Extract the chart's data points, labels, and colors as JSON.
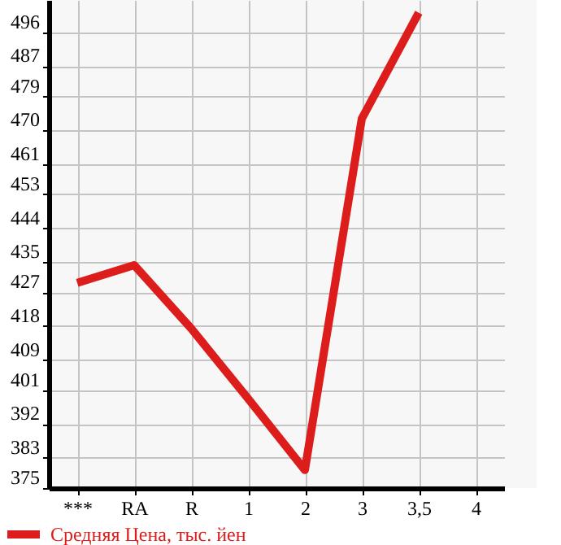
{
  "chart_data": {
    "type": "line",
    "categories": [
      "***",
      "RA",
      "R",
      "1",
      "2",
      "3",
      "3,5",
      "4"
    ],
    "series": [
      {
        "name": "Средняя Цена, тыс. йен",
        "color": "#dd1c1c",
        "values": [
          429.5,
          434.2,
          417.4,
          398.8,
          379.8,
          473.1,
          501.2,
          null
        ]
      }
    ],
    "ylim": [
      375,
      504.6
    ],
    "yticks": [
      375,
      383,
      392,
      401,
      409,
      418,
      427,
      435,
      444,
      453,
      461,
      470,
      479,
      487,
      496
    ],
    "grid": true,
    "legend": "bottom",
    "marker": "none",
    "line_style": "solid"
  }
}
